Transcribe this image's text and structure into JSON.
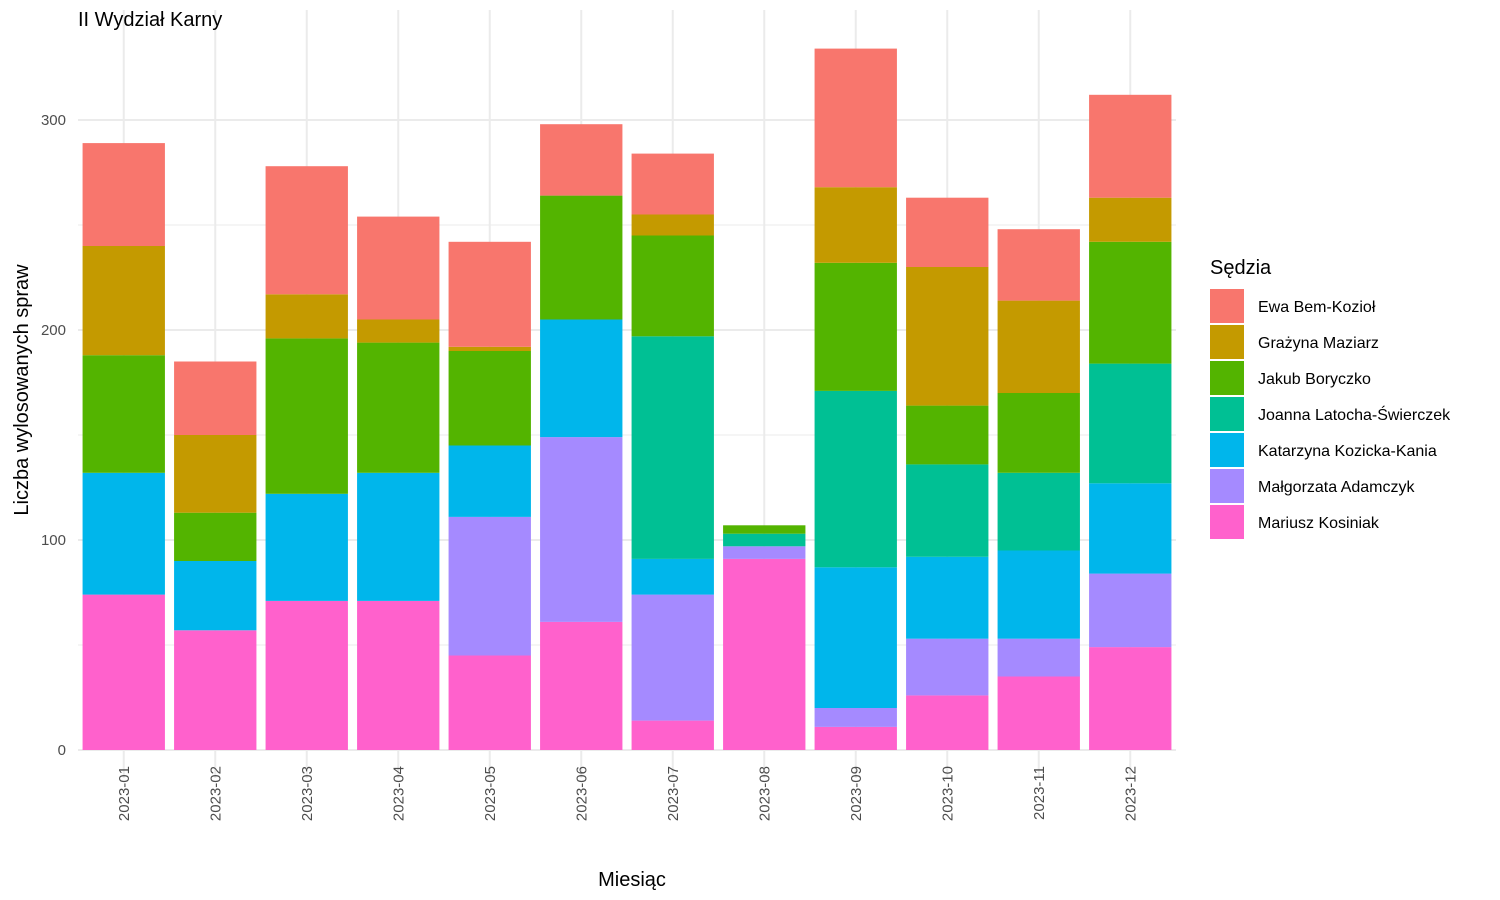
{
  "chart_data": {
    "type": "bar",
    "stacked": true,
    "title": "II Wydział Karny",
    "xlabel": "Miesiąc",
    "ylabel": "Liczba wylosowanych spraw",
    "ylim": [
      0,
      340
    ],
    "yticks": [
      0,
      100,
      200,
      300
    ],
    "grid": true,
    "legend_title": "Sędzia",
    "legend_position": "right",
    "categories": [
      "2023-01",
      "2023-02",
      "2023-03",
      "2023-04",
      "2023-05",
      "2023-06",
      "2023-07",
      "2023-08",
      "2023-09",
      "2023-10",
      "2023-11",
      "2023-12"
    ],
    "series": [
      {
        "name": "Mariusz Kosiniak",
        "color": "#FF61CC",
        "values": [
          74,
          57,
          71,
          71,
          45,
          61,
          14,
          91,
          11,
          26,
          35,
          49
        ]
      },
      {
        "name": "Małgorzata Adamczyk",
        "color": "#A58AFF",
        "values": [
          0,
          0,
          0,
          0,
          66,
          88,
          60,
          6,
          9,
          27,
          18,
          35
        ]
      },
      {
        "name": "Katarzyna Kozicka-Kania",
        "color": "#00B6EB",
        "values": [
          58,
          33,
          51,
          61,
          34,
          56,
          17,
          0,
          67,
          39,
          42,
          43
        ]
      },
      {
        "name": "Joanna Latocha-Świerczek",
        "color": "#00C094",
        "values": [
          0,
          0,
          0,
          0,
          0,
          0,
          106,
          6,
          84,
          44,
          37,
          57
        ]
      },
      {
        "name": "Jakub Boryczko",
        "color": "#53B400",
        "values": [
          56,
          23,
          74,
          62,
          45,
          59,
          48,
          4,
          61,
          28,
          38,
          58
        ]
      },
      {
        "name": "Grażyna Maziarz",
        "color": "#C49A00",
        "values": [
          52,
          37,
          21,
          11,
          2,
          0,
          10,
          0,
          36,
          66,
          44,
          21
        ]
      },
      {
        "name": "Ewa Bem-Kozioł",
        "color": "#F8766D",
        "values": [
          49,
          35,
          61,
          49,
          50,
          34,
          29,
          0,
          66,
          33,
          34,
          49
        ]
      }
    ],
    "legend_order": [
      "Ewa Bem-Kozioł",
      "Grażyna Maziarz",
      "Jakub Boryczko",
      "Joanna Latocha-Świerczek",
      "Katarzyna Kozicka-Kania",
      "Małgorzata Adamczyk",
      "Mariusz Kosiniak"
    ]
  }
}
